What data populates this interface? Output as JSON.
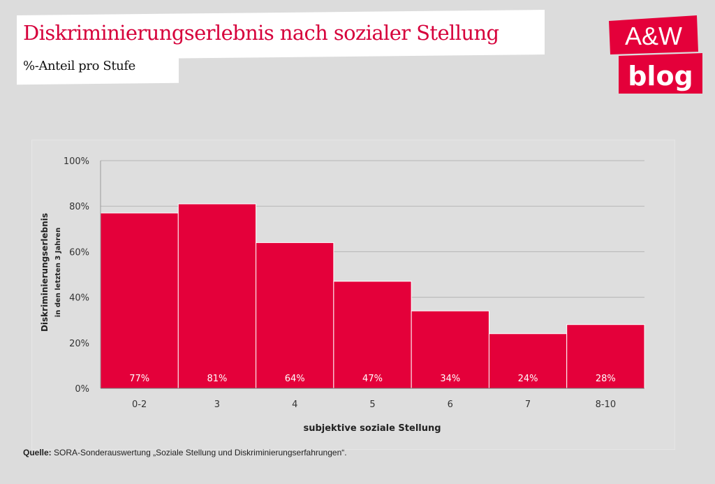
{
  "header": {
    "title": "Diskriminierungserlebnis nach sozialer Stellung",
    "subtitle": "%-Anteil pro Stufe"
  },
  "logo": {
    "line1": "A&W",
    "line2": "blog",
    "color": "#e4003a"
  },
  "source": {
    "label": "Quelle:",
    "text": " SORA-Sonderauswertung „Soziale Stellung und Diskriminierungserfahrungen“."
  },
  "chart_data": {
    "type": "bar",
    "title": "Diskriminierungserlebnis nach sozialer Stellung",
    "subtitle": "%-Anteil pro Stufe",
    "categories": [
      "0-2",
      "3",
      "4",
      "5",
      "6",
      "7",
      "8-10"
    ],
    "values": [
      77,
      81,
      64,
      47,
      34,
      24,
      28
    ],
    "data_labels": [
      "77%",
      "81%",
      "64%",
      "47%",
      "34%",
      "24%",
      "28%"
    ],
    "xlabel": "subjektive soziale Stellung",
    "ylabel": "Diskriminierungserlebnis",
    "ylabel_sub": "in den letzten 3 Jahren",
    "ylim": [
      0,
      100
    ],
    "yticks": [
      0,
      20,
      40,
      60,
      80,
      100
    ],
    "ytick_labels": [
      "0%",
      "20%",
      "40%",
      "60%",
      "80%",
      "100%"
    ],
    "grid": true,
    "legend": "none",
    "bar_color": "#e4003a"
  }
}
